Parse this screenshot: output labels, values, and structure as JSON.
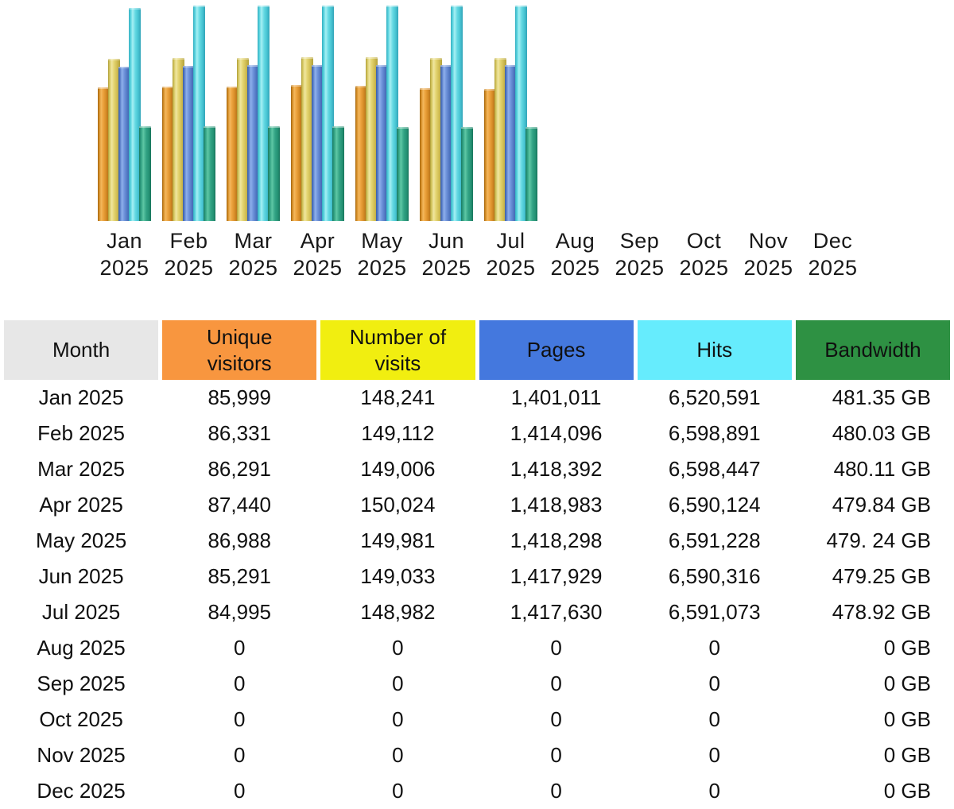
{
  "chart_data": {
    "type": "bar",
    "bar_style": "3d-cylinder",
    "grid": false,
    "legend_position": "none",
    "categories": [
      "Jan 2025",
      "Feb 2025",
      "Mar 2025",
      "Apr 2025",
      "May 2025",
      "Jun 2025",
      "Jul 2025",
      "Aug 2025",
      "Sep 2025",
      "Oct 2025",
      "Nov 2025",
      "Dec 2025"
    ],
    "series": [
      {
        "name": "Unique visitors",
        "color": "#eda43f",
        "values": [
          85999,
          86331,
          86291,
          87440,
          86988,
          85291,
          84995,
          0,
          0,
          0,
          0,
          0
        ]
      },
      {
        "name": "Number of visits",
        "color": "#e3d470",
        "values": [
          148241,
          149112,
          149006,
          150024,
          149981,
          149033,
          148982,
          0,
          0,
          0,
          0,
          0
        ]
      },
      {
        "name": "Pages",
        "color": "#6b90d8",
        "values": [
          1401011,
          1414096,
          1418392,
          1418983,
          1418298,
          1417929,
          1417630,
          0,
          0,
          0,
          0,
          0
        ]
      },
      {
        "name": "Hits",
        "color": "#63d8e2",
        "values": [
          6520591,
          6598891,
          6598447,
          6590124,
          6591228,
          6590316,
          6591073,
          0,
          0,
          0,
          0,
          0
        ]
      },
      {
        "name": "Bandwidth",
        "unit": "GB",
        "color": "#2f9e80",
        "values": [
          481.35,
          480.03,
          480.11,
          479.84,
          479.24,
          479.25,
          478.92,
          0,
          0,
          0,
          0,
          0
        ]
      }
    ]
  },
  "table": {
    "columns": [
      {
        "label": "Month",
        "bg": "#e7e7e7",
        "text_color": "#101010"
      },
      {
        "label": "Unique visitors",
        "bg": "#f8963f",
        "text_color": "#101010"
      },
      {
        "label": "Number of visits",
        "bg": "#f1ee10",
        "text_color": "#101010"
      },
      {
        "label": "Pages",
        "bg": "#4478de",
        "text_color": "#101010"
      },
      {
        "label": "Hits",
        "bg": "#66ecfd",
        "text_color": "#101010"
      },
      {
        "label": "Bandwidth",
        "bg": "#2e9143",
        "text_color": "#101010"
      }
    ],
    "rows": [
      [
        "Jan 2025",
        "85,999",
        "148,241",
        "1,401,011",
        "6,520,591",
        "481.35 GB"
      ],
      [
        "Feb 2025",
        "86,331",
        "149,112",
        "1,414,096",
        "6,598,891",
        "480.03 GB"
      ],
      [
        "Mar 2025",
        "86,291",
        "149,006",
        "1,418,392",
        "6,598,447",
        "480.11 GB"
      ],
      [
        "Apr 2025",
        "87,440",
        "150,024",
        "1,418,983",
        "6,590,124",
        "479.84 GB"
      ],
      [
        "May 2025",
        "86,988",
        "149,981",
        "1,418,298",
        "6,591,228",
        "479. 24 GB"
      ],
      [
        "Jun 2025",
        "85,291",
        "149,033",
        "1,417,929",
        "6,590,316",
        "479.25 GB"
      ],
      [
        "Jul 2025",
        "84,995",
        "148,982",
        "1,417,630",
        "6,591,073",
        "478.92 GB"
      ],
      [
        "Aug 2025",
        "0",
        "0",
        "0",
        "0",
        "0 GB"
      ],
      [
        "Sep 2025",
        "0",
        "0",
        "0",
        "0",
        "0 GB"
      ],
      [
        "Oct 2025",
        "0",
        "0",
        "0",
        "0",
        "0 GB"
      ],
      [
        "Nov 2025",
        "0",
        "0",
        "0",
        "0",
        "0 GB"
      ],
      [
        "Dec 2025",
        "0",
        "0",
        "0",
        "0",
        "0 GB"
      ]
    ]
  }
}
